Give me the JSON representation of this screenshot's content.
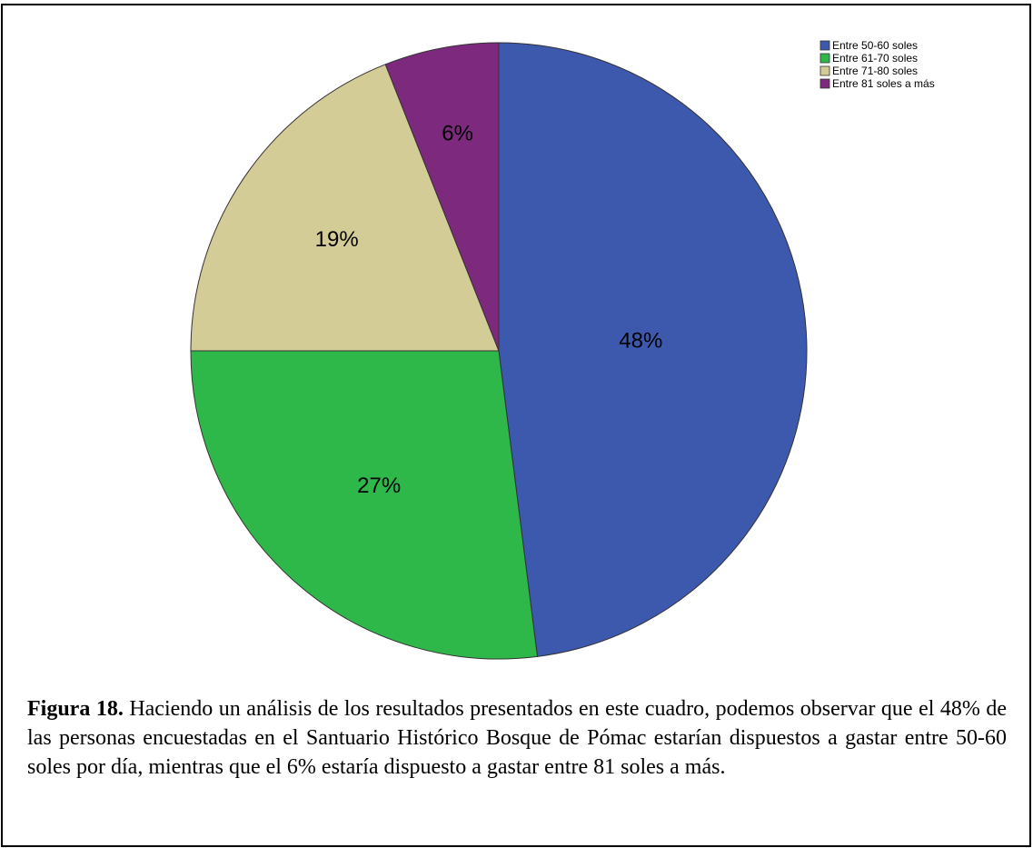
{
  "chart_data": {
    "type": "pie",
    "categories": [
      "Entre 50-60 soles",
      "Entre 61-70 soles",
      "Entre 71-80 soles",
      "Entre 81 soles a más"
    ],
    "values": [
      48,
      27,
      19,
      6
    ],
    "value_labels": [
      "48%",
      "27%",
      "19%",
      "6%"
    ],
    "colors": [
      "#3d59ae",
      "#2fb84a",
      "#d4cc96",
      "#7d2a7e"
    ],
    "legend": "top-right"
  },
  "caption": {
    "label": "Figura 18.",
    "text": " Haciendo un análisis de los resultados presentados en este cuadro, podemos observar que el 48% de las personas encuestadas en el Santuario Histórico Bosque de Pómac estarían dispuestos a gastar entre 50-60 soles por día, mientras que el 6% estaría dispuesto a gastar entre 81 soles a más."
  }
}
